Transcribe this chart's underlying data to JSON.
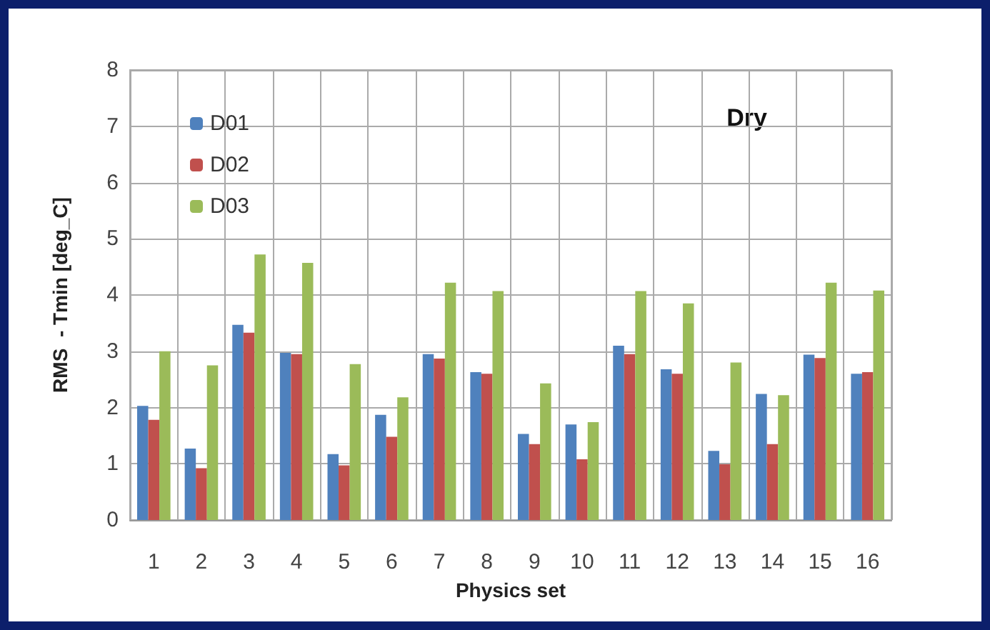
{
  "chart_data": {
    "type": "bar",
    "xlabel": "Physics set",
    "ylabel": "RMS  - Tmin [deg_C]",
    "annotations": [
      "Dry"
    ],
    "categories": [
      "1",
      "2",
      "3",
      "4",
      "5",
      "6",
      "7",
      "8",
      "9",
      "10",
      "11",
      "12",
      "13",
      "14",
      "15",
      "16"
    ],
    "series": [
      {
        "name": "D01",
        "color": "#4f81bd",
        "values": [
          2.03,
          1.27,
          3.47,
          2.97,
          1.17,
          1.87,
          2.95,
          2.63,
          1.53,
          1.7,
          3.1,
          2.68,
          1.23,
          2.24,
          2.94,
          2.6
        ]
      },
      {
        "name": "D02",
        "color": "#c0504d",
        "values": [
          1.78,
          0.92,
          3.33,
          2.95,
          0.97,
          1.48,
          2.87,
          2.6,
          1.35,
          1.08,
          2.95,
          2.6,
          0.99,
          1.35,
          2.88,
          2.63
        ]
      },
      {
        "name": "D03",
        "color": "#9bbb59",
        "values": [
          3.0,
          2.75,
          4.72,
          4.57,
          2.77,
          2.18,
          4.22,
          4.07,
          2.43,
          1.74,
          4.07,
          3.85,
          2.8,
          2.22,
          4.22,
          4.08
        ]
      }
    ],
    "ylim": [
      0,
      8
    ],
    "yticks": [
      0,
      1,
      2,
      3,
      4,
      5,
      6,
      7,
      8
    ],
    "grid": true,
    "legend": "top left"
  }
}
